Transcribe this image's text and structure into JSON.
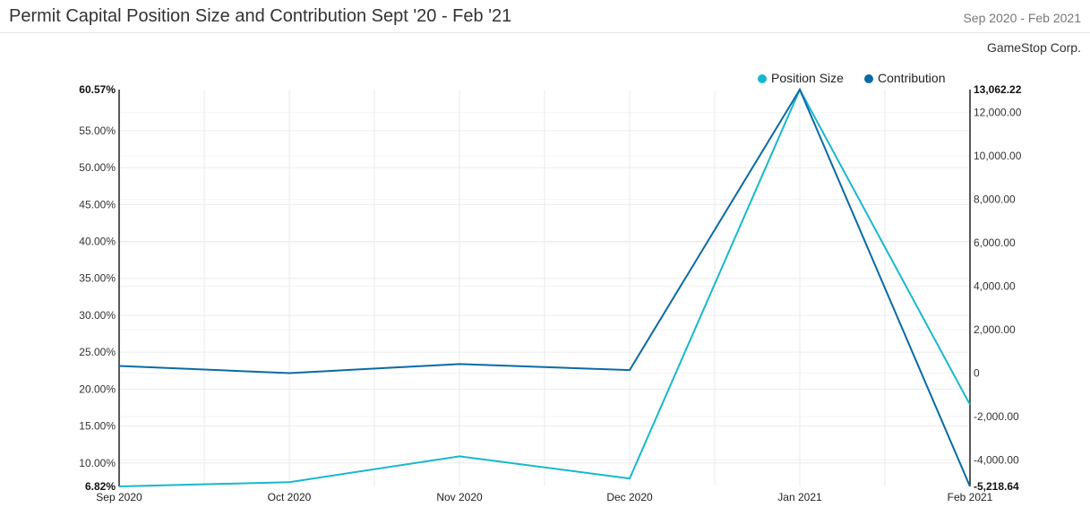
{
  "header": {
    "title": "Permit Capital Position Size and Contribution Sept '20 - Feb '21",
    "date_range": "Sep 2020 - Feb 2021",
    "company": "GameStop Corp."
  },
  "colors": {
    "position_size": "#17b8cc",
    "contribution": "#0a6aa5"
  },
  "chart_data": {
    "type": "line",
    "title": "Permit Capital Position Size and Contribution Sept '20 - Feb '21",
    "categories": [
      "Sep 2020",
      "Oct 2020",
      "Nov 2020",
      "Dec 2020",
      "Jan 2021",
      "Feb 2021"
    ],
    "legend_position": "top-right",
    "grid": true,
    "series": [
      {
        "name": "Position Size",
        "axis": "left",
        "values": [
          6.82,
          7.4,
          10.9,
          7.9,
          60.57,
          17.9
        ]
      },
      {
        "name": "Contribution",
        "axis": "right",
        "values": [
          330,
          0,
          420,
          140,
          13062.22,
          -5218.64
        ]
      }
    ],
    "y_left": {
      "range": [
        6.82,
        60.57
      ],
      "min_label": "6.82%",
      "max_label": "60.57%",
      "ticks": [
        {
          "value": 10,
          "label": "10.00%"
        },
        {
          "value": 15,
          "label": "15.00%"
        },
        {
          "value": 20,
          "label": "20.00%"
        },
        {
          "value": 25,
          "label": "25.00%"
        },
        {
          "value": 30,
          "label": "30.00%"
        },
        {
          "value": 35,
          "label": "35.00%"
        },
        {
          "value": 40,
          "label": "40.00%"
        },
        {
          "value": 45,
          "label": "45.00%"
        },
        {
          "value": 50,
          "label": "50.00%"
        },
        {
          "value": 55,
          "label": "55.00%"
        }
      ]
    },
    "y_right": {
      "range": [
        -5218.64,
        13062.22
      ],
      "min_label": "-5,218.64",
      "max_label": "13,062.22",
      "ticks": [
        {
          "value": -4000,
          "label": "-4,000.00"
        },
        {
          "value": -2000,
          "label": "-2,000.00"
        },
        {
          "value": 0,
          "label": "0"
        },
        {
          "value": 2000,
          "label": "2,000.00"
        },
        {
          "value": 4000,
          "label": "4,000.00"
        },
        {
          "value": 6000,
          "label": "6,000.00"
        },
        {
          "value": 8000,
          "label": "8,000.00"
        },
        {
          "value": 10000,
          "label": "10,000.00"
        },
        {
          "value": 12000,
          "label": "12,000.00"
        }
      ]
    }
  }
}
